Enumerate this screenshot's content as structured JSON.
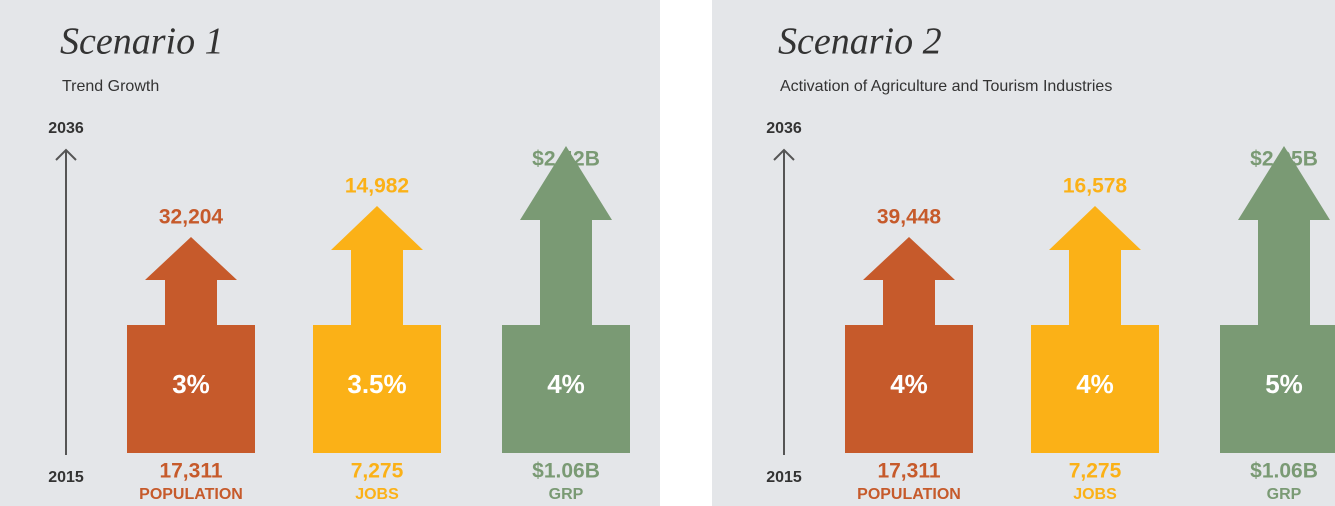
{
  "panels": [
    {
      "title": "Scenario 1",
      "subtitle": "Trend Growth",
      "year_end": "2036",
      "year_start": "2015",
      "items": [
        {
          "name": "POPULATION",
          "end": "32,204",
          "rate": "3%",
          "start": "17,311"
        },
        {
          "name": "JOBS",
          "end": "14,982",
          "rate": "3.5%",
          "start": "7,275"
        },
        {
          "name": "GRP",
          "end": "$2.42B",
          "rate": "4%",
          "start": "$1.06B"
        }
      ]
    },
    {
      "title": "Scenario 2",
      "subtitle": "Activation of Agriculture and Tourism Industries",
      "year_end": "2036",
      "year_start": "2015",
      "items": [
        {
          "name": "POPULATION",
          "end": "39,448",
          "rate": "4%",
          "start": "17,311"
        },
        {
          "name": "JOBS",
          "end": "16,578",
          "rate": "4%",
          "start": "7,275"
        },
        {
          "name": "GRP",
          "end": "$2.95B",
          "rate": "5%",
          "start": "$1.06B"
        }
      ]
    }
  ]
}
